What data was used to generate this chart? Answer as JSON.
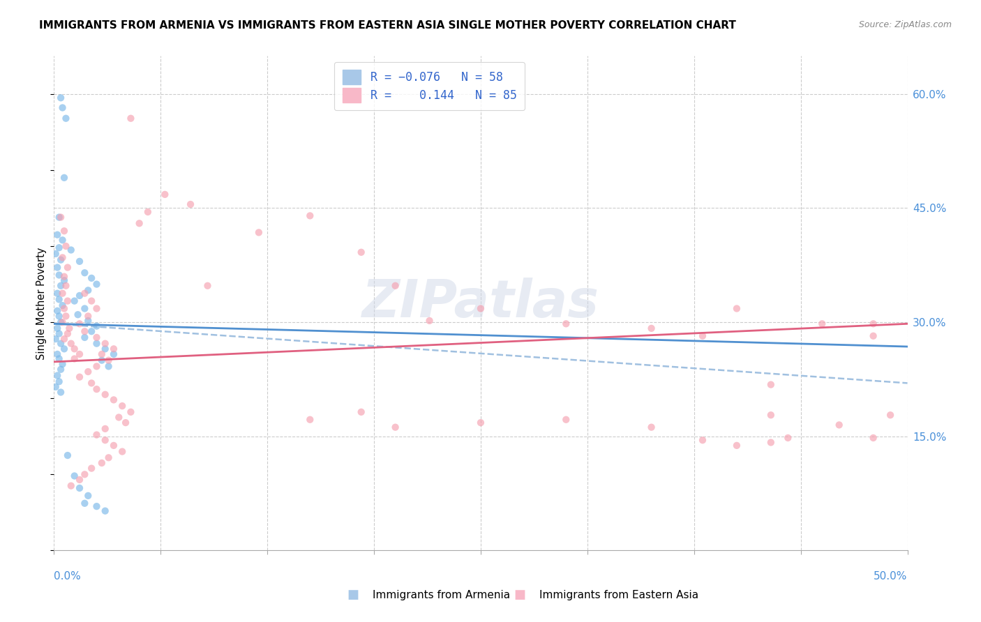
{
  "title": "IMMIGRANTS FROM ARMENIA VS IMMIGRANTS FROM EASTERN ASIA SINGLE MOTHER POVERTY CORRELATION CHART",
  "source": "Source: ZipAtlas.com",
  "ylabel": "Single Mother Poverty",
  "ylabel_right_ticks": [
    "60.0%",
    "45.0%",
    "30.0%",
    "15.0%"
  ],
  "ylabel_right_vals": [
    0.6,
    0.45,
    0.3,
    0.15
  ],
  "watermark": "ZIPatlas",
  "xlim": [
    0.0,
    0.5
  ],
  "ylim": [
    0.0,
    0.65
  ],
  "armenia_color": "#7ab8e8",
  "eastern_asia_color": "#f5a0b0",
  "armenia_line_color": "#5090d0",
  "eastern_asia_line_color": "#e06080",
  "dashed_line_color": "#a0c0e0",
  "armenia_scatter": [
    [
      0.004,
      0.595
    ],
    [
      0.005,
      0.582
    ],
    [
      0.007,
      0.568
    ],
    [
      0.006,
      0.49
    ],
    [
      0.003,
      0.438
    ],
    [
      0.002,
      0.415
    ],
    [
      0.005,
      0.408
    ],
    [
      0.003,
      0.398
    ],
    [
      0.001,
      0.39
    ],
    [
      0.004,
      0.382
    ],
    [
      0.002,
      0.372
    ],
    [
      0.003,
      0.362
    ],
    [
      0.006,
      0.355
    ],
    [
      0.004,
      0.348
    ],
    [
      0.002,
      0.338
    ],
    [
      0.003,
      0.33
    ],
    [
      0.005,
      0.322
    ],
    [
      0.002,
      0.315
    ],
    [
      0.003,
      0.308
    ],
    [
      0.004,
      0.3
    ],
    [
      0.002,
      0.292
    ],
    [
      0.003,
      0.285
    ],
    [
      0.001,
      0.278
    ],
    [
      0.004,
      0.272
    ],
    [
      0.006,
      0.265
    ],
    [
      0.002,
      0.258
    ],
    [
      0.003,
      0.252
    ],
    [
      0.005,
      0.245
    ],
    [
      0.004,
      0.238
    ],
    [
      0.002,
      0.23
    ],
    [
      0.003,
      0.222
    ],
    [
      0.001,
      0.215
    ],
    [
      0.004,
      0.208
    ],
    [
      0.01,
      0.395
    ],
    [
      0.015,
      0.38
    ],
    [
      0.018,
      0.365
    ],
    [
      0.022,
      0.358
    ],
    [
      0.025,
      0.35
    ],
    [
      0.02,
      0.342
    ],
    [
      0.015,
      0.335
    ],
    [
      0.012,
      0.328
    ],
    [
      0.018,
      0.318
    ],
    [
      0.014,
      0.31
    ],
    [
      0.02,
      0.302
    ],
    [
      0.025,
      0.295
    ],
    [
      0.022,
      0.288
    ],
    [
      0.018,
      0.28
    ],
    [
      0.025,
      0.272
    ],
    [
      0.03,
      0.265
    ],
    [
      0.035,
      0.258
    ],
    [
      0.028,
      0.25
    ],
    [
      0.032,
      0.242
    ],
    [
      0.008,
      0.125
    ],
    [
      0.012,
      0.098
    ],
    [
      0.015,
      0.082
    ],
    [
      0.02,
      0.072
    ],
    [
      0.018,
      0.062
    ],
    [
      0.025,
      0.058
    ],
    [
      0.03,
      0.052
    ]
  ],
  "eastern_asia_scatter": [
    [
      0.004,
      0.438
    ],
    [
      0.006,
      0.42
    ],
    [
      0.007,
      0.4
    ],
    [
      0.005,
      0.385
    ],
    [
      0.008,
      0.372
    ],
    [
      0.006,
      0.36
    ],
    [
      0.007,
      0.348
    ],
    [
      0.005,
      0.338
    ],
    [
      0.008,
      0.328
    ],
    [
      0.006,
      0.318
    ],
    [
      0.007,
      0.308
    ],
    [
      0.005,
      0.3
    ],
    [
      0.009,
      0.292
    ],
    [
      0.008,
      0.285
    ],
    [
      0.006,
      0.278
    ],
    [
      0.01,
      0.272
    ],
    [
      0.012,
      0.265
    ],
    [
      0.015,
      0.258
    ],
    [
      0.012,
      0.252
    ],
    [
      0.018,
      0.338
    ],
    [
      0.022,
      0.328
    ],
    [
      0.025,
      0.318
    ],
    [
      0.02,
      0.308
    ],
    [
      0.015,
      0.298
    ],
    [
      0.018,
      0.288
    ],
    [
      0.025,
      0.28
    ],
    [
      0.03,
      0.272
    ],
    [
      0.035,
      0.265
    ],
    [
      0.028,
      0.258
    ],
    [
      0.032,
      0.25
    ],
    [
      0.025,
      0.242
    ],
    [
      0.02,
      0.235
    ],
    [
      0.015,
      0.228
    ],
    [
      0.022,
      0.22
    ],
    [
      0.025,
      0.212
    ],
    [
      0.03,
      0.205
    ],
    [
      0.035,
      0.198
    ],
    [
      0.04,
      0.19
    ],
    [
      0.045,
      0.182
    ],
    [
      0.038,
      0.175
    ],
    [
      0.042,
      0.168
    ],
    [
      0.03,
      0.16
    ],
    [
      0.025,
      0.152
    ],
    [
      0.03,
      0.145
    ],
    [
      0.035,
      0.138
    ],
    [
      0.04,
      0.13
    ],
    [
      0.032,
      0.122
    ],
    [
      0.028,
      0.115
    ],
    [
      0.022,
      0.108
    ],
    [
      0.018,
      0.1
    ],
    [
      0.015,
      0.093
    ],
    [
      0.01,
      0.085
    ],
    [
      0.05,
      0.43
    ],
    [
      0.045,
      0.568
    ],
    [
      0.055,
      0.445
    ],
    [
      0.065,
      0.468
    ],
    [
      0.08,
      0.455
    ],
    [
      0.09,
      0.348
    ],
    [
      0.12,
      0.418
    ],
    [
      0.15,
      0.44
    ],
    [
      0.18,
      0.392
    ],
    [
      0.2,
      0.348
    ],
    [
      0.22,
      0.302
    ],
    [
      0.25,
      0.318
    ],
    [
      0.3,
      0.298
    ],
    [
      0.35,
      0.292
    ],
    [
      0.38,
      0.282
    ],
    [
      0.4,
      0.318
    ],
    [
      0.42,
      0.218
    ],
    [
      0.42,
      0.178
    ],
    [
      0.45,
      0.298
    ],
    [
      0.48,
      0.282
    ],
    [
      0.15,
      0.172
    ],
    [
      0.18,
      0.182
    ],
    [
      0.2,
      0.162
    ],
    [
      0.25,
      0.168
    ],
    [
      0.3,
      0.172
    ],
    [
      0.35,
      0.162
    ],
    [
      0.38,
      0.145
    ],
    [
      0.4,
      0.138
    ],
    [
      0.43,
      0.148
    ],
    [
      0.46,
      0.165
    ],
    [
      0.48,
      0.148
    ],
    [
      0.49,
      0.178
    ],
    [
      0.48,
      0.298
    ],
    [
      0.42,
      0.142
    ]
  ],
  "armenia_trend": [
    0.0,
    0.5,
    0.298,
    0.268
  ],
  "eastern_asia_trend": [
    0.0,
    0.5,
    0.248,
    0.298
  ],
  "dashed_trend": [
    0.0,
    0.5,
    0.298,
    0.22
  ]
}
